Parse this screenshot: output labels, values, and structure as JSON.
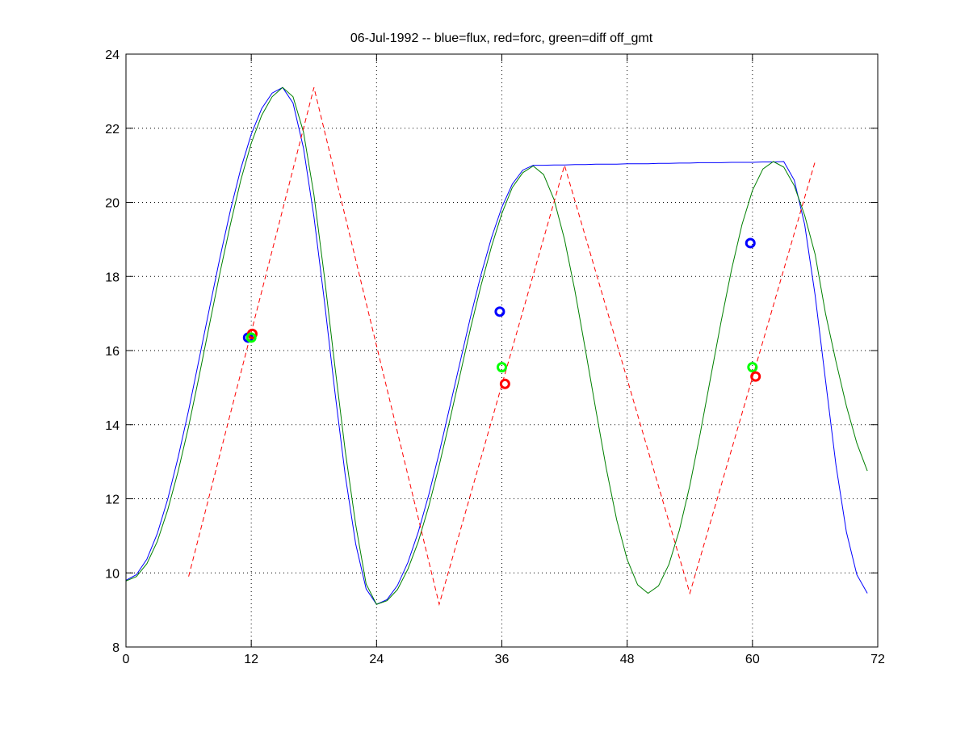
{
  "chart_data": {
    "type": "line",
    "title": "06-Jul-1992 -- blue=flux, red=forc, green=diff off_gmt",
    "xlabel": "",
    "ylabel": "",
    "xlim": [
      0,
      72
    ],
    "ylim": [
      8,
      24
    ],
    "xticks": [
      0,
      12,
      24,
      36,
      48,
      60,
      72
    ],
    "yticks": [
      8,
      10,
      12,
      14,
      16,
      18,
      20,
      22,
      24
    ],
    "grid": true,
    "series": [
      {
        "name": "flux",
        "color": "#0000ff",
        "style": "solid",
        "x": [
          0,
          1,
          2,
          3,
          4,
          5,
          6,
          7,
          8,
          9,
          10,
          11,
          12,
          13,
          14,
          15,
          16,
          17,
          18,
          19,
          20,
          21,
          22,
          23,
          24,
          25,
          26,
          27,
          28,
          29,
          30,
          31,
          32,
          33,
          34,
          35,
          36,
          37,
          38,
          39,
          40,
          41,
          42,
          43,
          44,
          45,
          46,
          47,
          48,
          49,
          50,
          51,
          52,
          53,
          54,
          55,
          56,
          57,
          58,
          59,
          60,
          61,
          62,
          63,
          64,
          65,
          66,
          67,
          68,
          69,
          70,
          71
        ],
        "y": [
          9.8,
          9.95,
          10.37,
          11.06,
          11.99,
          13.13,
          14.39,
          15.76,
          17.14,
          18.51,
          19.78,
          20.91,
          21.84,
          22.53,
          22.95,
          23.1,
          22.68,
          21.47,
          19.61,
          17.34,
          14.91,
          12.64,
          10.78,
          9.57,
          9.15,
          9.28,
          9.66,
          10.28,
          11.11,
          12.11,
          13.24,
          14.46,
          15.69,
          16.91,
          18.04,
          19.04,
          19.87,
          20.49,
          20.87,
          21.0,
          21.0,
          21.01,
          21.01,
          21.02,
          21.02,
          21.03,
          21.03,
          21.03,
          21.04,
          21.04,
          21.04,
          21.05,
          21.05,
          21.06,
          21.06,
          21.07,
          21.07,
          21.07,
          21.08,
          21.08,
          21.08,
          21.09,
          21.09,
          21.1,
          20.6,
          19.4,
          17.5,
          15.2,
          12.9,
          11.1,
          9.95,
          9.45
        ]
      },
      {
        "name": "diff off_gmt",
        "color": "#008000",
        "style": "solid",
        "x": [
          0,
          1,
          2,
          3,
          4,
          5,
          6,
          7,
          8,
          9,
          10,
          11,
          12,
          13,
          14,
          15,
          16,
          17,
          18,
          19,
          20,
          21,
          22,
          23,
          24,
          25,
          26,
          27,
          28,
          29,
          30,
          31,
          32,
          33,
          34,
          35,
          36,
          37,
          38,
          39,
          40,
          41,
          42,
          43,
          44,
          45,
          46,
          47,
          48,
          49,
          50,
          51,
          52,
          53,
          54,
          55,
          56,
          57,
          58,
          59,
          60,
          61,
          62,
          63,
          64,
          65,
          66,
          67,
          68,
          69,
          70,
          71
        ],
        "y": [
          9.78,
          9.9,
          10.25,
          10.85,
          11.7,
          12.75,
          13.95,
          15.3,
          16.7,
          18.1,
          19.4,
          20.6,
          21.6,
          22.35,
          22.85,
          23.1,
          22.85,
          21.9,
          20.2,
          18.0,
          15.6,
          13.3,
          11.3,
          9.7,
          9.15,
          9.25,
          9.55,
          10.1,
          10.85,
          11.8,
          12.9,
          14.1,
          15.35,
          16.6,
          17.75,
          18.8,
          19.7,
          20.4,
          20.8,
          20.98,
          20.75,
          20.07,
          19.0,
          17.61,
          16.03,
          14.4,
          12.82,
          11.43,
          10.36,
          9.68,
          9.45,
          9.65,
          10.23,
          11.15,
          12.36,
          13.77,
          15.28,
          16.78,
          18.19,
          19.4,
          20.32,
          20.9,
          21.1,
          20.95,
          20.45,
          19.65,
          18.6,
          17.0,
          15.7,
          14.5,
          13.5,
          12.75
        ]
      },
      {
        "name": "forc",
        "color": "#ff0000",
        "style": "dashed",
        "x": [
          6,
          18,
          30,
          42,
          54,
          66
        ],
        "y": [
          9.9,
          23.1,
          9.15,
          21.0,
          9.45,
          21.1
        ]
      }
    ],
    "markers": [
      {
        "series": "flux",
        "color": "#0000ff",
        "x": 11.7,
        "y": 16.35
      },
      {
        "series": "forc",
        "color": "#ff0000",
        "x": 12.1,
        "y": 16.45
      },
      {
        "series": "diff",
        "color": "#00ff00",
        "x": 12.0,
        "y": 16.35
      },
      {
        "series": "flux",
        "color": "#0000ff",
        "x": 35.8,
        "y": 17.05
      },
      {
        "series": "diff",
        "color": "#00ff00",
        "x": 36.0,
        "y": 15.55
      },
      {
        "series": "forc",
        "color": "#ff0000",
        "x": 36.3,
        "y": 15.1
      },
      {
        "series": "flux",
        "color": "#0000ff",
        "x": 59.8,
        "y": 18.9
      },
      {
        "series": "diff",
        "color": "#00ff00",
        "x": 60.0,
        "y": 15.55
      },
      {
        "series": "forc",
        "color": "#ff0000",
        "x": 60.3,
        "y": 15.3
      }
    ]
  }
}
